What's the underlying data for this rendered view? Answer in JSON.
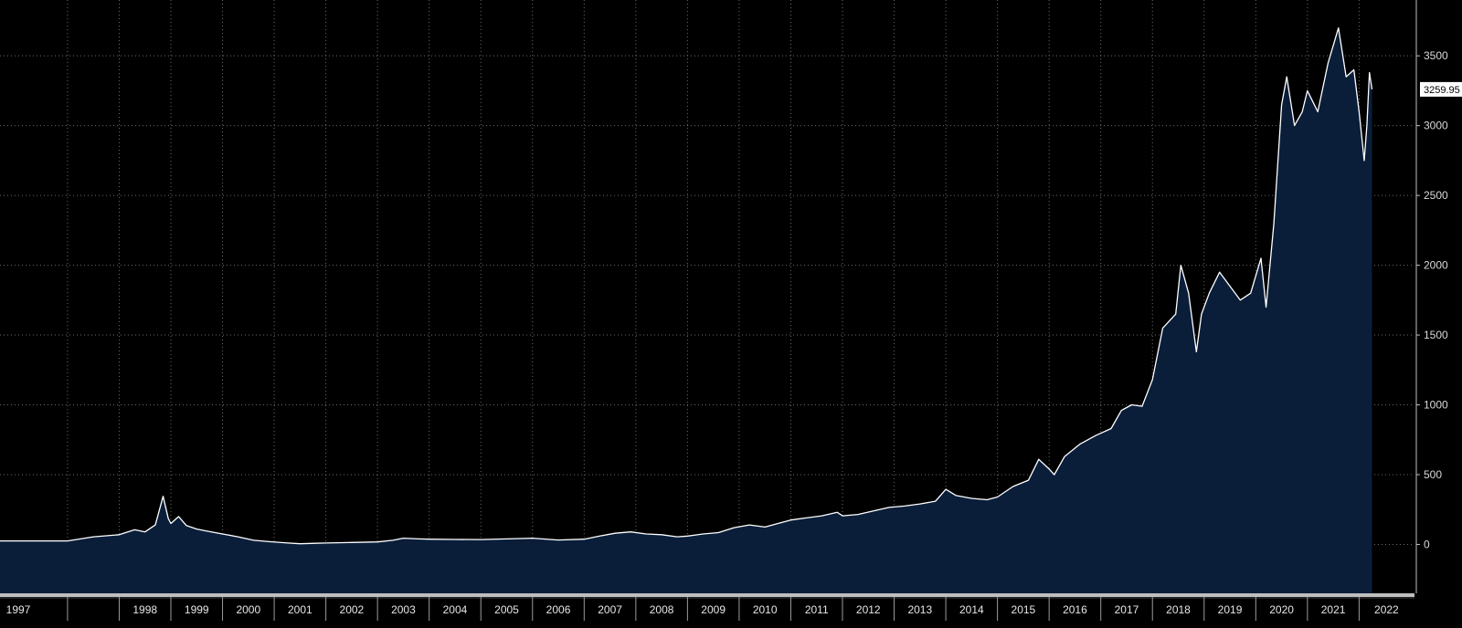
{
  "chart_data": {
    "type": "area",
    "title": "",
    "xlabel": "",
    "ylabel": "",
    "x_ticks": [
      "1997",
      "1998",
      "1999",
      "2000",
      "2001",
      "2002",
      "2003",
      "2004",
      "2005",
      "2006",
      "2007",
      "2008",
      "2009",
      "2010",
      "2011",
      "2012",
      "2013",
      "2014",
      "2015",
      "2016",
      "2017",
      "2018",
      "2019",
      "2020",
      "2021",
      "2022"
    ],
    "y_ticks": [
      0,
      500,
      1000,
      1500,
      2000,
      2500,
      3000,
      3500
    ],
    "xlim": [
      1996.4,
      2022.4
    ],
    "ylim": [
      -350,
      3900
    ],
    "last_value_label": "3259.95",
    "grid": true,
    "legend": "none",
    "colors": {
      "background": "#000000",
      "fill": "#0a1e3a",
      "line": "#ffffff",
      "grid": "#6b6b6b",
      "text": "#e6e6e6"
    },
    "series": [
      {
        "x": [
          1997.0,
          1997.5,
          1998.0,
          1998.3,
          1998.5,
          1998.7,
          1998.85,
          1998.95,
          1999.0,
          1999.15,
          1999.3,
          1999.5,
          1999.7,
          2000.0,
          2000.3,
          2000.6,
          2000.9,
          2001.2,
          2001.5,
          2001.8,
          2002.0,
          2002.5,
          2003.0,
          2003.3,
          2003.5,
          2003.8,
          2004.0,
          2004.5,
          2005.0,
          2005.5,
          2006.0,
          2006.5,
          2007.0,
          2007.3,
          2007.6,
          2007.9,
          2008.2,
          2008.5,
          2008.8,
          2009.0,
          2009.3,
          2009.6,
          2009.9,
          2010.2,
          2010.5,
          2010.8,
          2011.0,
          2011.3,
          2011.6,
          2011.9,
          2012.0,
          2012.3,
          2012.6,
          2012.9,
          2013.2,
          2013.5,
          2013.8,
          2014.0,
          2014.2,
          2014.5,
          2014.8,
          2015.0,
          2015.3,
          2015.6,
          2015.8,
          2016.0,
          2016.1,
          2016.3,
          2016.6,
          2016.9,
          2017.2,
          2017.4,
          2017.6,
          2017.8,
          2018.0,
          2018.2,
          2018.45,
          2018.55,
          2018.7,
          2018.85,
          2018.95,
          2019.1,
          2019.3,
          2019.5,
          2019.7,
          2019.9,
          2020.1,
          2020.2,
          2020.35,
          2020.5,
          2020.6,
          2020.75,
          2020.9,
          2021.0,
          2021.2,
          2021.4,
          2021.6,
          2021.75,
          2021.9,
          2022.0,
          2022.1,
          2022.15,
          2022.2,
          2022.25
        ],
        "y": [
          25,
          55,
          70,
          105,
          90,
          140,
          345,
          185,
          150,
          200,
          135,
          110,
          95,
          75,
          55,
          30,
          20,
          12,
          5,
          8,
          10,
          14,
          18,
          30,
          45,
          40,
          38,
          36,
          35,
          40,
          45,
          32,
          38,
          60,
          80,
          90,
          75,
          70,
          55,
          60,
          75,
          85,
          120,
          140,
          125,
          155,
          175,
          190,
          205,
          230,
          205,
          215,
          240,
          265,
          275,
          290,
          310,
          395,
          350,
          330,
          320,
          340,
          415,
          460,
          610,
          540,
          500,
          630,
          720,
          780,
          830,
          960,
          1000,
          990,
          1180,
          1550,
          1650,
          2000,
          1800,
          1380,
          1650,
          1800,
          1950,
          1850,
          1750,
          1800,
          2050,
          1700,
          2300,
          3150,
          3350,
          3000,
          3100,
          3250,
          3100,
          3450,
          3700,
          3350,
          3400,
          3100,
          2750,
          3000,
          3380,
          3260
        ]
      }
    ]
  }
}
